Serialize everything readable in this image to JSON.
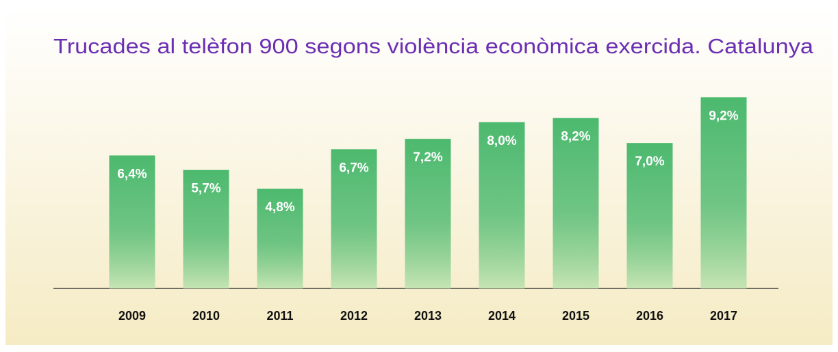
{
  "chart_data": {
    "type": "bar",
    "title": "Trucades al telèfon 900 segons violència econòmica exercida. Catalunya",
    "categories": [
      "2009",
      "2010",
      "2011",
      "2012",
      "2013",
      "2014",
      "2015",
      "2016",
      "2017"
    ],
    "values": [
      6.4,
      5.7,
      4.8,
      6.7,
      7.2,
      8.0,
      8.2,
      7.0,
      9.2
    ],
    "value_labels": [
      "6,4%",
      "5,7%",
      "4,8%",
      "6,7%",
      "7,2%",
      "8,0%",
      "8,2%",
      "7,0%",
      "9,2%"
    ],
    "color": "#4cb96e"
  }
}
